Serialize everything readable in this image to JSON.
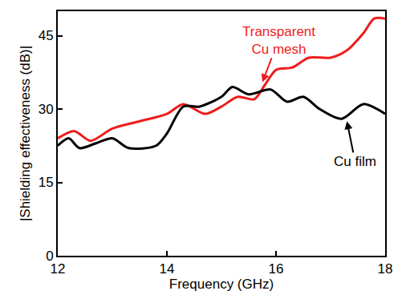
{
  "chart_data": {
    "type": "line",
    "x_label": "Frequency (GHz)",
    "y_label": "|Shielding effectiveness (dB)|",
    "xlim": [
      12,
      18
    ],
    "xticks": [
      12,
      14,
      16,
      18
    ],
    "ylim": [
      0,
      50
    ],
    "yticks": [
      0,
      15,
      30,
      45
    ],
    "grid": false,
    "series": [
      {
        "name": "Transparent Cu mesh",
        "color": "#ee1c1c",
        "x": [
          12,
          12.3,
          12.6,
          13,
          13.5,
          14,
          14.3,
          14.7,
          15,
          15.3,
          15.6,
          15.8,
          16,
          16.3,
          16.6,
          17,
          17.3,
          17.6,
          17.8,
          18
        ],
        "values": [
          24,
          25.5,
          23.5,
          26,
          27.5,
          29,
          31,
          29,
          30.5,
          32.5,
          32,
          35,
          38,
          38.5,
          40.5,
          40.5,
          42,
          45.5,
          48.5,
          48.5
        ]
      },
      {
        "name": "Cu film",
        "color": "#000000",
        "x": [
          12,
          12.2,
          12.4,
          12.7,
          13,
          13.3,
          13.8,
          14,
          14.3,
          14.6,
          15,
          15.2,
          15.5,
          15.9,
          16.2,
          16.5,
          16.8,
          17.2,
          17.6,
          18
        ],
        "values": [
          22.5,
          24,
          22,
          23,
          24,
          22,
          22.5,
          25,
          30.5,
          30.5,
          32.5,
          34.5,
          33,
          34,
          31.5,
          32.5,
          30,
          28,
          31,
          29
        ]
      }
    ],
    "annotations": [
      {
        "text": [
          "Transparent",
          "Cu mesh"
        ],
        "color": "#ee1c1c",
        "x": 15.75,
        "y": 35.5
      },
      {
        "text": [
          "Cu film"
        ],
        "color": "#000000",
        "x": 17.3,
        "y": 27.5
      }
    ]
  }
}
